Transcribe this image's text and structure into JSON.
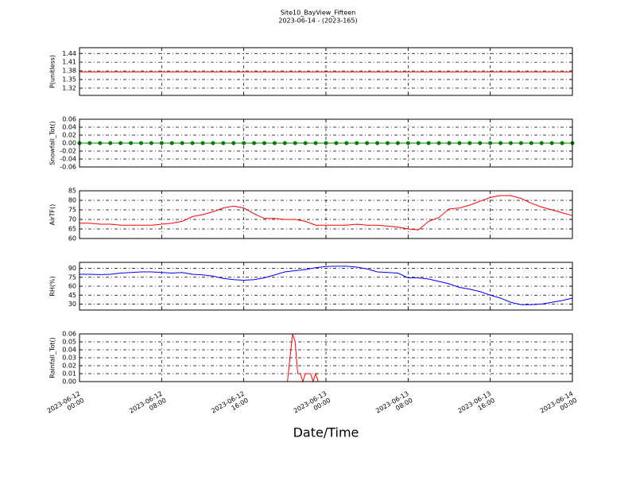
{
  "header": {
    "title": "Site10_BayView_Fifteen",
    "subtitle": "2023-06-14 - (2023-165)"
  },
  "chart_data": [
    {
      "type": "line",
      "ylabel": "P(unitless)",
      "color": "#ff0000",
      "x": [
        "2023-06-12 00:00",
        "2023-06-14 00:00"
      ],
      "values": [
        1.376,
        1.376
      ],
      "ylim": [
        1.295,
        1.46
      ],
      "yticks": [
        1.32,
        1.35,
        1.38,
        1.41,
        1.44
      ],
      "grid": true
    },
    {
      "type": "line",
      "ylabel": "Snowfall_Tot()",
      "color": "#008000",
      "marker": true,
      "x": [
        "2023-06-12 00:00",
        "2023-06-12 01:00",
        "2023-06-12 02:00",
        "2023-06-12 03:00",
        "2023-06-12 04:00",
        "2023-06-12 05:00",
        "2023-06-12 06:00",
        "2023-06-12 07:00",
        "2023-06-12 08:00",
        "2023-06-12 09:00",
        "2023-06-12 10:00",
        "2023-06-12 11:00",
        "2023-06-12 12:00",
        "2023-06-12 13:00",
        "2023-06-12 14:00",
        "2023-06-12 15:00",
        "2023-06-12 16:00",
        "2023-06-12 17:00",
        "2023-06-12 18:00",
        "2023-06-12 19:00",
        "2023-06-12 20:00",
        "2023-06-12 21:00",
        "2023-06-12 22:00",
        "2023-06-12 23:00",
        "2023-06-13 00:00",
        "2023-06-13 01:00",
        "2023-06-13 02:00",
        "2023-06-13 03:00",
        "2023-06-13 04:00",
        "2023-06-13 05:00",
        "2023-06-13 06:00",
        "2023-06-13 07:00",
        "2023-06-13 08:00",
        "2023-06-13 09:00",
        "2023-06-13 10:00",
        "2023-06-13 11:00",
        "2023-06-13 12:00",
        "2023-06-13 13:00",
        "2023-06-13 14:00",
        "2023-06-13 15:00",
        "2023-06-13 16:00",
        "2023-06-13 17:00",
        "2023-06-13 18:00",
        "2023-06-13 19:00",
        "2023-06-13 20:00",
        "2023-06-13 21:00",
        "2023-06-13 22:00",
        "2023-06-13 23:00",
        "2023-06-14 00:00"
      ],
      "values": [
        0,
        0,
        0,
        0,
        0,
        0,
        0,
        0,
        0,
        0,
        0,
        0,
        0,
        0,
        0,
        0,
        0,
        0,
        0,
        0,
        0,
        0,
        0,
        0,
        0,
        0,
        0,
        0,
        0,
        0,
        0,
        0,
        0,
        0,
        0,
        0,
        0,
        0,
        0,
        0,
        0,
        0,
        0,
        0,
        0,
        0,
        0,
        0,
        0
      ],
      "ylim": [
        -0.06,
        0.06
      ],
      "yticks": [
        {
          "value": -0.06,
          "label": "-0.06"
        },
        {
          "value": -0.04,
          "label": "-0.04"
        },
        {
          "value": -0.02,
          "label": "-0.02"
        },
        {
          "value": 0,
          "label": "0.00"
        },
        {
          "value": 0.02,
          "label": "0.02"
        },
        {
          "value": 0.04,
          "label": "0.04"
        },
        {
          "value": 0.06,
          "label": "0.06"
        }
      ],
      "grid": true
    },
    {
      "type": "line",
      "ylabel": "AirTF()",
      "color": "#ff0000",
      "x": [
        "2023-06-12 00:00",
        "2023-06-12 01:00",
        "2023-06-12 02:00",
        "2023-06-12 03:00",
        "2023-06-12 04:00",
        "2023-06-12 05:00",
        "2023-06-12 06:00",
        "2023-06-12 07:00",
        "2023-06-12 08:00",
        "2023-06-12 09:00",
        "2023-06-12 10:00",
        "2023-06-12 11:00",
        "2023-06-12 12:00",
        "2023-06-12 13:00",
        "2023-06-12 14:00",
        "2023-06-12 15:00",
        "2023-06-12 16:00",
        "2023-06-12 17:00",
        "2023-06-12 18:00",
        "2023-06-12 19:00",
        "2023-06-12 20:00",
        "2023-06-12 21:00",
        "2023-06-12 22:00",
        "2023-06-12 23:00",
        "2023-06-13 00:00",
        "2023-06-13 01:00",
        "2023-06-13 02:00",
        "2023-06-13 03:00",
        "2023-06-13 04:00",
        "2023-06-13 05:00",
        "2023-06-13 06:00",
        "2023-06-13 07:00",
        "2023-06-13 08:00",
        "2023-06-13 09:00",
        "2023-06-13 10:00",
        "2023-06-13 11:00",
        "2023-06-13 12:00",
        "2023-06-13 13:00",
        "2023-06-13 14:00",
        "2023-06-13 15:00",
        "2023-06-13 16:00",
        "2023-06-13 17:00",
        "2023-06-13 18:00",
        "2023-06-13 19:00",
        "2023-06-13 20:00",
        "2023-06-13 21:00",
        "2023-06-13 22:00",
        "2023-06-13 23:00",
        "2023-06-14 00:00"
      ],
      "values": [
        68,
        68,
        67.5,
        67.5,
        67,
        67,
        67,
        67,
        67.5,
        68,
        69,
        71.5,
        72.5,
        74,
        76,
        77,
        76,
        73,
        70.5,
        70.5,
        70,
        70,
        69,
        67,
        67,
        67,
        67,
        67.5,
        67,
        67,
        66.5,
        66,
        65,
        64.5,
        69,
        71,
        75.5,
        76,
        77.5,
        79.5,
        81.5,
        82.5,
        82.5,
        81,
        78.5,
        76.5,
        75,
        73.5,
        72
      ],
      "ylim": [
        60,
        85
      ],
      "yticks": [
        60,
        65,
        70,
        75,
        80,
        85
      ],
      "grid": true
    },
    {
      "type": "line",
      "ylabel": "RH(%)",
      "color": "#0000ff",
      "x": [
        "2023-06-12 00:00",
        "2023-06-12 01:00",
        "2023-06-12 02:00",
        "2023-06-12 03:00",
        "2023-06-12 04:00",
        "2023-06-12 05:00",
        "2023-06-12 06:00",
        "2023-06-12 07:00",
        "2023-06-12 08:00",
        "2023-06-12 09:00",
        "2023-06-12 10:00",
        "2023-06-12 11:00",
        "2023-06-12 12:00",
        "2023-06-12 13:00",
        "2023-06-12 14:00",
        "2023-06-12 15:00",
        "2023-06-12 16:00",
        "2023-06-12 17:00",
        "2023-06-12 18:00",
        "2023-06-12 19:00",
        "2023-06-12 20:00",
        "2023-06-12 21:00",
        "2023-06-12 22:00",
        "2023-06-12 23:00",
        "2023-06-13 00:00",
        "2023-06-13 01:00",
        "2023-06-13 02:00",
        "2023-06-13 03:00",
        "2023-06-13 04:00",
        "2023-06-13 05:00",
        "2023-06-13 06:00",
        "2023-06-13 07:00",
        "2023-06-13 08:00",
        "2023-06-13 09:00",
        "2023-06-13 10:00",
        "2023-06-13 11:00",
        "2023-06-13 12:00",
        "2023-06-13 13:00",
        "2023-06-13 14:00",
        "2023-06-13 15:00",
        "2023-06-13 16:00",
        "2023-06-13 17:00",
        "2023-06-13 18:00",
        "2023-06-13 19:00",
        "2023-06-13 20:00",
        "2023-06-13 21:00",
        "2023-06-13 22:00",
        "2023-06-13 23:00",
        "2023-06-14 00:00"
      ],
      "values": [
        80,
        80,
        79.5,
        80,
        82,
        83,
        84,
        84,
        83,
        82,
        83,
        80,
        79,
        77,
        73,
        71,
        70,
        71,
        74,
        79,
        84,
        86,
        88,
        91,
        93,
        93.5,
        93.5,
        92,
        89,
        84,
        83,
        82,
        74,
        74,
        72,
        68,
        64,
        58,
        55,
        51,
        45,
        40,
        33,
        29,
        29,
        30,
        33,
        36,
        40
      ],
      "ylim": [
        20,
        100
      ],
      "yticks": [
        30,
        45,
        60,
        75,
        90
      ],
      "grid": true
    },
    {
      "type": "line",
      "ylabel": "Rainfall_Tot()",
      "color": "#ff0000",
      "xlabel": "Date/Time",
      "x": [
        "2023-06-12 00:00",
        "2023-06-12 20:15",
        "2023-06-12 20:30",
        "2023-06-12 20:45",
        "2023-06-12 21:00",
        "2023-06-12 21:15",
        "2023-06-12 21:30",
        "2023-06-12 21:45",
        "2023-06-12 22:00",
        "2023-06-12 22:30",
        "2023-06-12 22:45",
        "2023-06-12 23:00",
        "2023-06-12 23:15",
        "2023-06-14 00:00"
      ],
      "values": [
        0,
        0,
        0.03,
        0.06,
        0.05,
        0.01,
        0.01,
        0,
        0.01,
        0.01,
        0,
        0.01,
        0,
        0
      ],
      "xlim": [
        "2023-06-12 00:00",
        "2023-06-14 00:00"
      ],
      "xticks": [
        "2023-06-12 00:00",
        "2023-06-12 08:00",
        "2023-06-12 16:00",
        "2023-06-13 00:00",
        "2023-06-13 08:00",
        "2023-06-13 16:00",
        "2023-06-14 00:00"
      ],
      "ylim": [
        0,
        0.06
      ],
      "yticks": [
        {
          "value": 0,
          "label": "0.00"
        },
        0.01,
        0.02,
        0.03,
        0.04,
        0.05,
        0.06
      ],
      "grid": true
    }
  ]
}
